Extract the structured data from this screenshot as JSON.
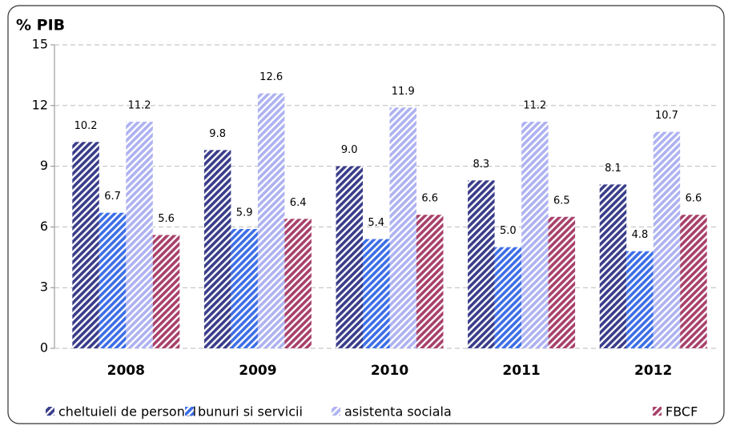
{
  "chart_data": {
    "type": "bar",
    "title": "% PIB",
    "categories": [
      "2008",
      "2009",
      "2010",
      "2011",
      "2012"
    ],
    "series": [
      {
        "name": "cheltuieli de personal",
        "color": "#3a3d8a",
        "values": [
          10.2,
          9.8,
          9,
          8.3,
          8.1
        ],
        "value_labels": [
          "10.2",
          "9.8",
          "9.0",
          "8.3",
          "8.1"
        ]
      },
      {
        "name": "bunuri si servicii",
        "color": "#3c6ee6",
        "values": [
          6.7,
          5.9,
          5.4,
          5,
          4.8
        ],
        "value_labels": [
          "6.7",
          "5.9",
          "5.4",
          "5.0",
          "4.8"
        ]
      },
      {
        "name": "asistenta sociala",
        "color": "#aeb2f0",
        "values": [
          11.2,
          12.6,
          11.9,
          11.2,
          10.7
        ],
        "value_labels": [
          "11.2",
          "12.6",
          "11.9",
          "11.2",
          "10.7"
        ]
      },
      {
        "name": "FBCF",
        "color": "#a8416a",
        "values": [
          5.6,
          6.4,
          6.6,
          6.5,
          6.6
        ],
        "value_labels": [
          "5.6",
          "6.4",
          "6.6",
          "6.5",
          "6.6"
        ]
      }
    ],
    "ylim": [
      0,
      15
    ],
    "yticks": [
      0,
      3,
      6,
      9,
      12,
      15
    ],
    "grid": true,
    "legend": "bottom"
  }
}
